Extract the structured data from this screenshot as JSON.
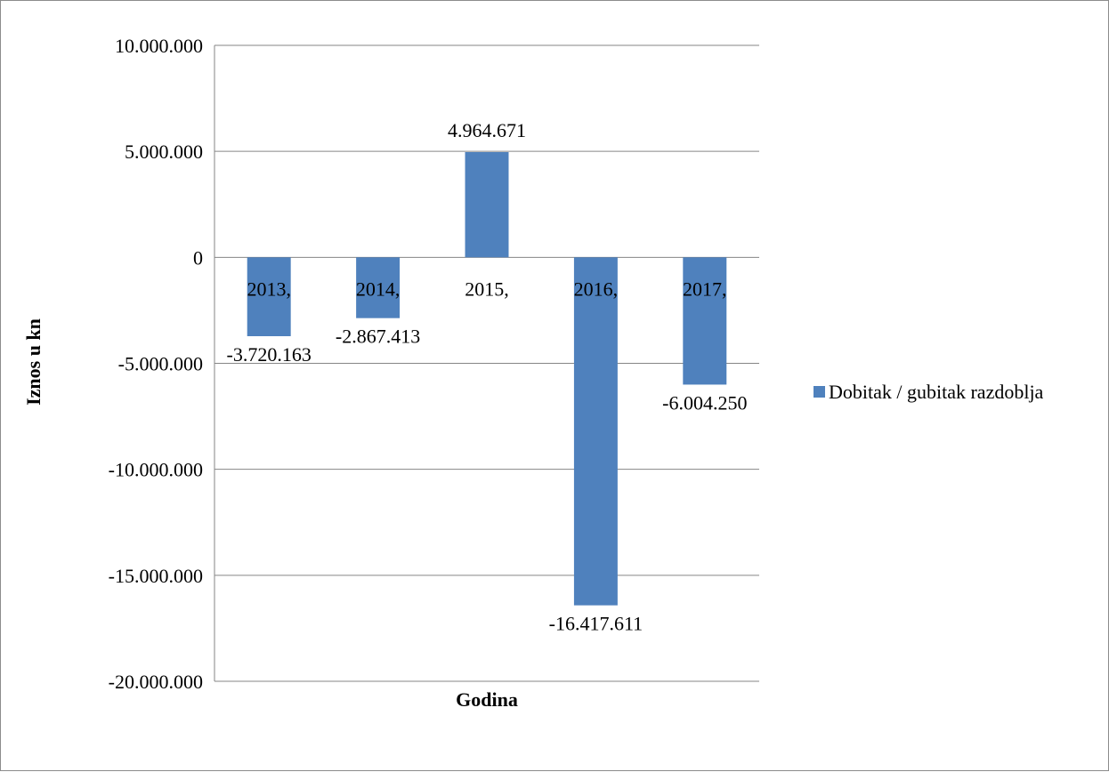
{
  "chart_data": {
    "type": "bar",
    "categories": [
      "2013,",
      "2014,",
      "2015,",
      "2016,",
      "2017,"
    ],
    "series": [
      {
        "name": "Dobitak / gubitak razdoblja",
        "values": [
          -3720163,
          -2867413,
          4964671,
          -16417611,
          -6004250
        ],
        "data_labels": [
          "-3.720.163",
          "-2.867.413",
          "4.964.671",
          "-16.417.611",
          "-6.004.250"
        ],
        "color": "#4f81bd"
      }
    ],
    "xlabel": "Godina",
    "ylabel": "Iznos u kn",
    "ylim": [
      -20000000,
      10000000
    ],
    "yticks": [
      10000000,
      5000000,
      0,
      -5000000,
      -10000000,
      -15000000,
      -20000000
    ],
    "ytick_labels": [
      "10.000.000",
      "5.000.000",
      "0",
      "-5.000.000",
      "-10.000.000",
      "-15.000.000",
      "-20.000.000"
    ],
    "grid": true,
    "legend_position": "right",
    "colors": {
      "bar": "#4f81bd",
      "grid": "#868686",
      "frame": "#8c8c8c"
    }
  }
}
